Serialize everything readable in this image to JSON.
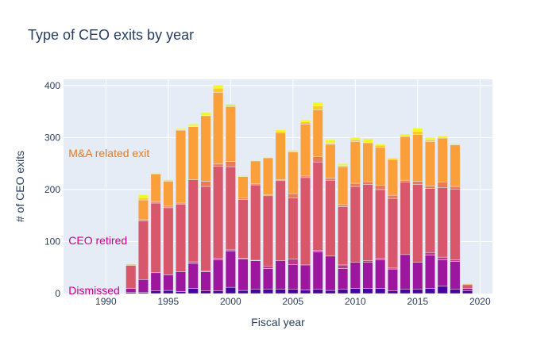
{
  "chart_data": {
    "type": "bar",
    "stacked": true,
    "title": "Type of CEO exits by year",
    "xlabel": "Fiscal year",
    "ylabel": "# of CEO exits",
    "xlim": [
      1986.6,
      2021.0
    ],
    "ylim": [
      0,
      412
    ],
    "x_ticks": [
      1990,
      1995,
      2000,
      2005,
      2010,
      2015,
      2020
    ],
    "y_ticks": [
      0,
      100,
      200,
      300,
      400
    ],
    "grid": true,
    "plot_bgcolor": "#e5ecf6",
    "legend": "none",
    "annotations": [
      {
        "text": "M&A related exit",
        "x": 1987,
        "y": 270,
        "color": "#e07b22"
      },
      {
        "text": "CEO retired",
        "x": 1987,
        "y": 102,
        "color": "#c9008a"
      },
      {
        "text": "Dismissed",
        "x": 1987,
        "y": 6,
        "color": "#c9008a"
      }
    ],
    "series_colors": [
      "#0d0887",
      "#46039f",
      "#7201a8",
      "#9c179e",
      "#bd3786",
      "#d8576b",
      "#ed7953",
      "#fb9f3a",
      "#fdca26",
      "#f0f921"
    ],
    "years": [
      1992,
      1993,
      1994,
      1995,
      1996,
      1997,
      1998,
      1999,
      2000,
      2001,
      2002,
      2003,
      2004,
      2005,
      2006,
      2007,
      2008,
      2009,
      2010,
      2011,
      2012,
      2013,
      2014,
      2015,
      2016,
      2017,
      2018,
      2019
    ],
    "stacks": [
      [
        0,
        2,
        0,
        8,
        0,
        44,
        0,
        2,
        0,
        1
      ],
      [
        0,
        2,
        0,
        25,
        0,
        113,
        2,
        38,
        4,
        6
      ],
      [
        0,
        5,
        0,
        35,
        0,
        134,
        3,
        53,
        1,
        1
      ],
      [
        0,
        6,
        0,
        30,
        0,
        129,
        3,
        48,
        2,
        1
      ],
      [
        0,
        4,
        0,
        38,
        0,
        130,
        2,
        140,
        1,
        2
      ],
      [
        0,
        10,
        0,
        48,
        3,
        158,
        0,
        102,
        1,
        4
      ],
      [
        0,
        5,
        0,
        37,
        1,
        163,
        10,
        126,
        1,
        5
      ],
      [
        0,
        5,
        0,
        60,
        3,
        177,
        4,
        138,
        8,
        6
      ],
      [
        0,
        12,
        0,
        70,
        2,
        160,
        10,
        105,
        3,
        3
      ],
      [
        0,
        6,
        0,
        60,
        2,
        113,
        3,
        41,
        0,
        2
      ],
      [
        0,
        8,
        0,
        55,
        1,
        145,
        2,
        44,
        0,
        1
      ],
      [
        0,
        8,
        0,
        40,
        5,
        135,
        2,
        71,
        1,
        1
      ],
      [
        0,
        8,
        0,
        55,
        0,
        154,
        2,
        90,
        3,
        3
      ],
      [
        0,
        8,
        0,
        48,
        10,
        118,
        8,
        80,
        2,
        2
      ],
      [
        0,
        7,
        0,
        48,
        0,
        168,
        3,
        100,
        4,
        4
      ],
      [
        0,
        8,
        0,
        72,
        3,
        170,
        10,
        90,
        8,
        7
      ],
      [
        0,
        6,
        0,
        66,
        0,
        146,
        4,
        65,
        2,
        7
      ],
      [
        0,
        8,
        0,
        40,
        7,
        112,
        4,
        73,
        2,
        4
      ],
      [
        0,
        10,
        0,
        50,
        0,
        146,
        6,
        80,
        4,
        4
      ],
      [
        0,
        10,
        0,
        50,
        3,
        147,
        5,
        75,
        0,
        8
      ],
      [
        0,
        10,
        0,
        55,
        3,
        132,
        8,
        73,
        4,
        2
      ],
      [
        0,
        5,
        0,
        42,
        2,
        134,
        6,
        68,
        3,
        1
      ],
      [
        0,
        8,
        0,
        67,
        0,
        139,
        4,
        84,
        0,
        5
      ],
      [
        0,
        8,
        0,
        52,
        0,
        150,
        6,
        90,
        6,
        6
      ],
      [
        0,
        10,
        0,
        64,
        5,
        123,
        5,
        85,
        4,
        4
      ],
      [
        0,
        14,
        0,
        51,
        5,
        134,
        10,
        85,
        0,
        4
      ],
      [
        0,
        8,
        0,
        54,
        3,
        136,
        5,
        80,
        1,
        2
      ],
      [
        0,
        5,
        0,
        5,
        0,
        7,
        0,
        2,
        0,
        1
      ]
    ]
  }
}
